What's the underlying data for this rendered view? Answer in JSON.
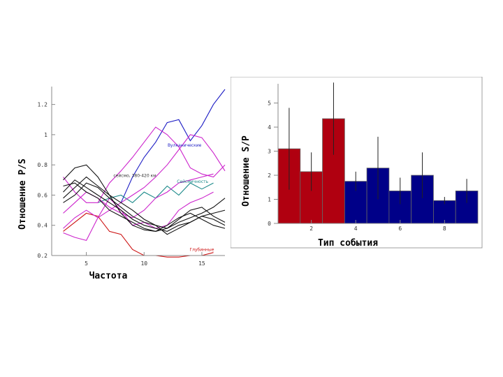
{
  "chart_data": [
    {
      "type": "line",
      "xlabel": "Частота",
      "ylabel": "Отношение P/S",
      "xlim": [
        2,
        17
      ],
      "ylim": [
        0.2,
        1.3
      ],
      "xticks": [
        "5",
        "10",
        "15"
      ],
      "yticks": [
        "0.2",
        "0.4",
        "0.6",
        "0.8",
        "1",
        "1.2"
      ],
      "grid": false,
      "annotations": [
        {
          "text": "Вулканические",
          "color": "#1c1cc4",
          "x": 13.5,
          "y": 0.92
        },
        {
          "text": "Сейсмичность",
          "color": "#1c8a8a",
          "x": 14.2,
          "y": 0.68
        },
        {
          "text": "сейсмо, 380-420 км",
          "color": "#333333",
          "x": 9.2,
          "y": 0.72
        },
        {
          "text": "Глубинные",
          "color": "#cc1111",
          "x": 15.0,
          "y": 0.23
        }
      ],
      "series": [
        {
          "color": "#1c1cc4",
          "x": [
            8,
            9,
            10,
            11,
            12,
            13,
            14,
            15,
            16,
            17
          ],
          "values": [
            0.55,
            0.72,
            0.85,
            0.95,
            1.08,
            1.1,
            0.96,
            1.06,
            1.2,
            1.3
          ]
        },
        {
          "color": "#1c8a8a",
          "x": [
            6,
            7,
            8,
            9,
            10,
            11,
            12,
            13,
            14,
            15,
            16
          ],
          "values": [
            0.55,
            0.58,
            0.6,
            0.55,
            0.62,
            0.58,
            0.66,
            0.6,
            0.68,
            0.64,
            0.68
          ]
        },
        {
          "color": "#cc1111",
          "x": [
            3,
            4,
            5,
            6,
            7,
            8,
            9,
            10,
            11,
            12,
            13,
            14,
            15,
            16
          ],
          "values": [
            0.36,
            0.42,
            0.48,
            0.46,
            0.36,
            0.34,
            0.24,
            0.2,
            0.2,
            0.19,
            0.19,
            0.2,
            0.2,
            0.22
          ]
        },
        {
          "color": "#cc22cc",
          "x": [
            3,
            4,
            5,
            6,
            7,
            8,
            9,
            10,
            11,
            12,
            13,
            14,
            15,
            16,
            17
          ],
          "values": [
            0.72,
            0.62,
            0.55,
            0.55,
            0.68,
            0.76,
            0.85,
            0.95,
            1.05,
            1.0,
            0.92,
            0.78,
            0.74,
            0.72,
            0.8
          ]
        },
        {
          "color": "#cc22cc",
          "x": [
            3,
            4,
            5,
            6,
            7,
            8,
            9,
            10,
            11,
            12,
            13,
            14,
            15,
            16,
            17
          ],
          "values": [
            0.38,
            0.45,
            0.5,
            0.45,
            0.5,
            0.55,
            0.6,
            0.65,
            0.72,
            0.8,
            0.9,
            1.0,
            0.98,
            0.88,
            0.76
          ]
        },
        {
          "color": "#cc22cc",
          "x": [
            3,
            4,
            5,
            6,
            7,
            8,
            9,
            10,
            11,
            12,
            13,
            14,
            15,
            16
          ],
          "values": [
            0.48,
            0.55,
            0.62,
            0.58,
            0.52,
            0.48,
            0.45,
            0.5,
            0.58,
            0.62,
            0.68,
            0.7,
            0.72,
            0.74
          ]
        },
        {
          "color": "#cc22cc",
          "x": [
            3,
            4,
            5,
            6,
            7,
            8,
            9,
            10,
            11,
            12,
            13,
            14,
            15,
            16
          ],
          "values": [
            0.35,
            0.32,
            0.3,
            0.45,
            0.58,
            0.5,
            0.4,
            0.42,
            0.38,
            0.4,
            0.5,
            0.55,
            0.58,
            0.62
          ]
        },
        {
          "color": "#111111",
          "x": [
            3,
            4,
            5,
            6,
            7,
            8,
            9,
            10,
            11,
            12,
            13,
            14,
            15,
            16,
            17
          ],
          "values": [
            0.7,
            0.78,
            0.8,
            0.72,
            0.6,
            0.48,
            0.4,
            0.37,
            0.36,
            0.38,
            0.42,
            0.45,
            0.48,
            0.52,
            0.58
          ]
        },
        {
          "color": "#111111",
          "x": [
            3,
            4,
            5,
            6,
            7,
            8,
            9,
            10,
            11,
            12,
            13,
            14,
            15,
            16,
            17
          ],
          "values": [
            0.62,
            0.7,
            0.65,
            0.6,
            0.55,
            0.5,
            0.44,
            0.4,
            0.38,
            0.36,
            0.4,
            0.42,
            0.46,
            0.48,
            0.5
          ]
        },
        {
          "color": "#111111",
          "x": [
            3,
            4,
            5,
            6,
            7,
            8,
            9,
            10,
            11,
            12,
            13,
            14,
            15,
            16,
            17
          ],
          "values": [
            0.55,
            0.6,
            0.68,
            0.65,
            0.58,
            0.52,
            0.46,
            0.42,
            0.4,
            0.38,
            0.44,
            0.5,
            0.52,
            0.46,
            0.42
          ]
        },
        {
          "color": "#111111",
          "x": [
            3,
            4,
            5,
            6,
            7,
            8,
            9,
            10,
            11,
            12,
            13,
            14,
            15,
            16,
            17
          ],
          "values": [
            0.66,
            0.68,
            0.62,
            0.58,
            0.5,
            0.46,
            0.42,
            0.38,
            0.36,
            0.4,
            0.45,
            0.48,
            0.44,
            0.4,
            0.38
          ]
        },
        {
          "color": "#111111",
          "x": [
            3,
            4,
            5,
            6,
            7,
            8,
            9,
            10,
            11,
            12,
            13,
            14,
            15,
            16,
            17
          ],
          "values": [
            0.58,
            0.65,
            0.72,
            0.66,
            0.6,
            0.55,
            0.5,
            0.44,
            0.4,
            0.34,
            0.38,
            0.42,
            0.46,
            0.44,
            0.4
          ]
        }
      ]
    },
    {
      "type": "bar",
      "xlabel": "Тип события",
      "ylabel": "Отношение S/P",
      "xlim": [
        0.5,
        9.5
      ],
      "ylim": [
        0,
        5.8
      ],
      "xticks": [
        "2",
        "4",
        "6",
        "8"
      ],
      "xtick_values": [
        2,
        4,
        6,
        8
      ],
      "yticks": [
        "0",
        "1",
        "2",
        "3",
        "4",
        "5"
      ],
      "grid": false,
      "categories": [
        "1",
        "2",
        "3",
        "4",
        "5",
        "6",
        "7",
        "8",
        "9"
      ],
      "values": [
        3.1,
        2.15,
        4.35,
        1.75,
        2.3,
        1.35,
        2.0,
        0.95,
        1.35
      ],
      "errors": [
        1.7,
        0.8,
        1.5,
        0.4,
        1.3,
        0.55,
        0.95,
        0.15,
        0.5
      ],
      "colors": [
        "#b00010",
        "#b00010",
        "#b00010",
        "#000088",
        "#000088",
        "#000088",
        "#000088",
        "#000088",
        "#000088"
      ]
    }
  ]
}
